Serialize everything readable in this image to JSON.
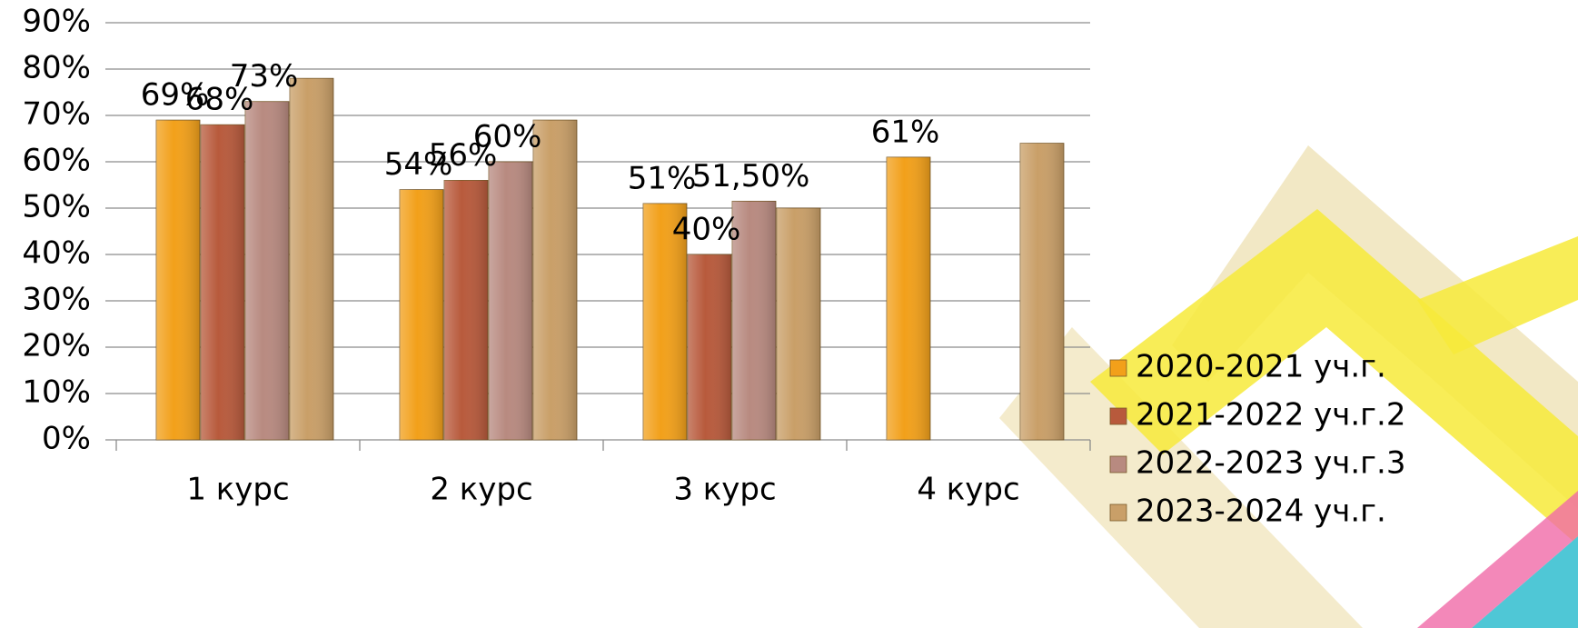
{
  "chart_data": {
    "type": "bar",
    "categories": [
      "1 курс",
      "2 курс",
      "3 курс",
      "4 курс"
    ],
    "series": [
      {
        "name": "2020-2021 уч.г.",
        "color": "#f2a01a",
        "values": [
          69,
          54,
          51,
          61
        ],
        "value_labels": [
          "69%",
          "54%",
          "51%",
          "61%"
        ]
      },
      {
        "name": "2021-2022 уч.г.2",
        "color": "#b85a3c",
        "values": [
          68,
          56,
          40,
          null
        ],
        "value_labels": [
          "68%",
          "56%",
          "40%",
          null
        ]
      },
      {
        "name": "2022-2023 уч.г.3",
        "color": "#b88a80",
        "values": [
          73,
          60,
          51.5,
          null
        ],
        "value_labels": [
          "73%",
          "60%",
          "51,50%",
          null
        ]
      },
      {
        "name": "2023-2024 уч.г.",
        "color": "#c99f68",
        "values": [
          78,
          69,
          50,
          64
        ]
      }
    ],
    "ylim": [
      0,
      90
    ],
    "yticks": [
      {
        "value": 0,
        "label": "0%"
      },
      {
        "value": 10,
        "label": "10%"
      },
      {
        "value": 20,
        "label": "20%"
      },
      {
        "value": 30,
        "label": "30%"
      },
      {
        "value": 40,
        "label": "40%"
      },
      {
        "value": 50,
        "label": "50%"
      },
      {
        "value": 60,
        "label": "60%"
      },
      {
        "value": 70,
        "label": "70%"
      },
      {
        "value": 80,
        "label": "80%"
      },
      {
        "value": 90,
        "label": "90%"
      }
    ],
    "grid": true,
    "legend": "right"
  }
}
